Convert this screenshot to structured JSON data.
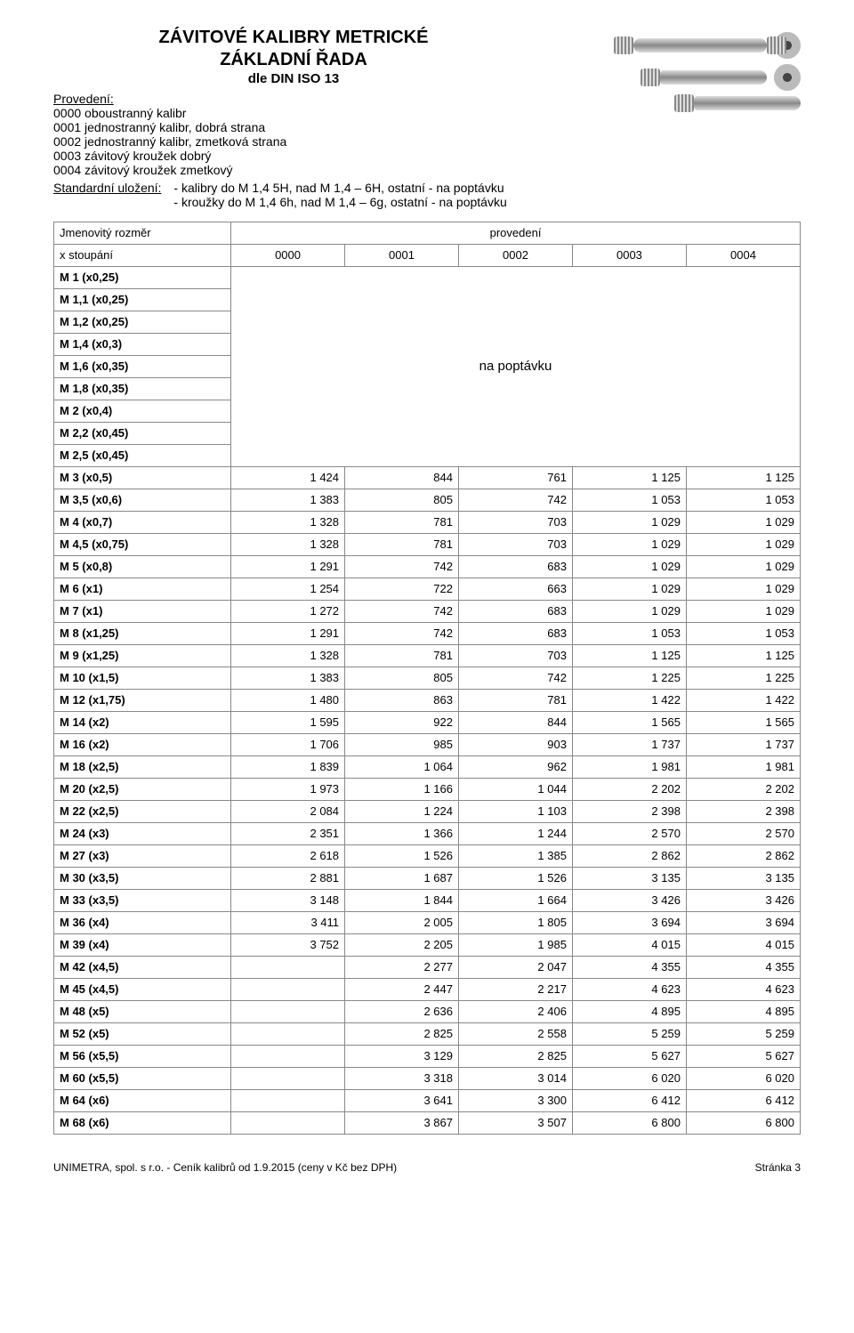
{
  "title": {
    "line1": "ZÁVITOVÉ KALIBRY METRICKÉ",
    "line2": "ZÁKLADNÍ ŘADA",
    "line3": "dle DIN ISO 13"
  },
  "provedeni": {
    "label": "Provedení:",
    "items": [
      "0000 oboustranný kalibr",
      "0001 jednostranný kalibr, dobrá strana",
      "0002 jednostranný kalibr, zmetková strana",
      "0003 závitový kroužek dobrý",
      "0004 závitový kroužek zmetkový"
    ]
  },
  "standard": {
    "label": "Standardní uložení:",
    "lines": [
      "- kalibry do M 1,4 5H, nad M 1,4 – 6H, ostatní - na poptávku",
      "- kroužky do M 1,4 6h, nad M 1,4 – 6g, ostatní - na poptávku"
    ]
  },
  "table": {
    "header1_left": "Jmenovitý rozměr",
    "header1_right": "provedení",
    "header2_left": "x stoupání",
    "codes": [
      "0000",
      "0001",
      "0002",
      "0003",
      "0004"
    ],
    "na_poptavku_label": "na poptávku",
    "rows_top": [
      "M 1 (x0,25)",
      "M 1,1 (x0,25)",
      "M 1,2 (x0,25)",
      "M 1,4 (x0,3)",
      "M 1,6 (x0,35)",
      "M 1,8 (x0,35)",
      "M 2 (x0,4)",
      "M 2,2 (x0,45)",
      "M 2,5 (x0,45)"
    ],
    "rows_data": [
      {
        "l": "M 3 (x0,5)",
        "v": [
          "1 424",
          "844",
          "761",
          "1 125",
          "1 125"
        ]
      },
      {
        "l": "M 3,5 (x0,6)",
        "v": [
          "1 383",
          "805",
          "742",
          "1 053",
          "1 053"
        ]
      },
      {
        "l": "M 4 (x0,7)",
        "v": [
          "1 328",
          "781",
          "703",
          "1 029",
          "1 029"
        ]
      },
      {
        "l": "M 4,5 (x0,75)",
        "v": [
          "1 328",
          "781",
          "703",
          "1 029",
          "1 029"
        ]
      },
      {
        "l": "M 5 (x0,8)",
        "v": [
          "1 291",
          "742",
          "683",
          "1 029",
          "1 029"
        ]
      },
      {
        "l": "M 6 (x1)",
        "v": [
          "1 254",
          "722",
          "663",
          "1 029",
          "1 029"
        ]
      },
      {
        "l": "M 7 (x1)",
        "v": [
          "1 272",
          "742",
          "683",
          "1 029",
          "1 029"
        ]
      },
      {
        "l": "M 8 (x1,25)",
        "v": [
          "1 291",
          "742",
          "683",
          "1 053",
          "1 053"
        ]
      },
      {
        "l": "M 9 (x1,25)",
        "v": [
          "1 328",
          "781",
          "703",
          "1 125",
          "1 125"
        ]
      },
      {
        "l": "M 10 (x1,5)",
        "v": [
          "1 383",
          "805",
          "742",
          "1 225",
          "1 225"
        ]
      },
      {
        "l": "M 12 (x1,75)",
        "v": [
          "1 480",
          "863",
          "781",
          "1 422",
          "1 422"
        ]
      },
      {
        "l": "M 14 (x2)",
        "v": [
          "1 595",
          "922",
          "844",
          "1 565",
          "1 565"
        ]
      },
      {
        "l": "M 16 (x2)",
        "v": [
          "1 706",
          "985",
          "903",
          "1 737",
          "1 737"
        ]
      },
      {
        "l": "M 18 (x2,5)",
        "v": [
          "1 839",
          "1 064",
          "962",
          "1 981",
          "1 981"
        ]
      },
      {
        "l": "M 20 (x2,5)",
        "v": [
          "1 973",
          "1 166",
          "1 044",
          "2 202",
          "2 202"
        ]
      },
      {
        "l": "M 22 (x2,5)",
        "v": [
          "2 084",
          "1 224",
          "1 103",
          "2 398",
          "2 398"
        ]
      },
      {
        "l": "M 24 (x3)",
        "v": [
          "2 351",
          "1 366",
          "1 244",
          "2 570",
          "2 570"
        ]
      },
      {
        "l": "M 27 (x3)",
        "v": [
          "2 618",
          "1 526",
          "1 385",
          "2 862",
          "2 862"
        ]
      },
      {
        "l": "M 30 (x3,5)",
        "v": [
          "2 881",
          "1 687",
          "1 526",
          "3 135",
          "3 135"
        ]
      },
      {
        "l": "M 33 (x3,5)",
        "v": [
          "3 148",
          "1 844",
          "1 664",
          "3 426",
          "3 426"
        ]
      },
      {
        "l": "M 36 (x4)",
        "v": [
          "3 411",
          "2 005",
          "1 805",
          "3 694",
          "3 694"
        ]
      },
      {
        "l": "M 39 (x4)",
        "v": [
          "3 752",
          "2 205",
          "1 985",
          "4 015",
          "4 015"
        ]
      },
      {
        "l": "M 42 (x4,5)",
        "v": [
          "",
          "2 277",
          "2 047",
          "4 355",
          "4 355"
        ]
      },
      {
        "l": "M 45 (x4,5)",
        "v": [
          "",
          "2 447",
          "2 217",
          "4 623",
          "4 623"
        ]
      },
      {
        "l": "M 48 (x5)",
        "v": [
          "",
          "2 636",
          "2 406",
          "4 895",
          "4 895"
        ]
      },
      {
        "l": "M 52 (x5)",
        "v": [
          "",
          "2 825",
          "2 558",
          "5 259",
          "5 259"
        ]
      },
      {
        "l": "M 56 (x5,5)",
        "v": [
          "",
          "3 129",
          "2 825",
          "5 627",
          "5 627"
        ]
      },
      {
        "l": "M 60 (x5,5)",
        "v": [
          "",
          "3 318",
          "3 014",
          "6 020",
          "6 020"
        ]
      },
      {
        "l": "M 64 (x6)",
        "v": [
          "",
          "3 641",
          "3 300",
          "6 412",
          "6 412"
        ]
      },
      {
        "l": "M 68 (x6)",
        "v": [
          "",
          "3 867",
          "3 507",
          "6 800",
          "6 800"
        ]
      }
    ]
  },
  "footer": {
    "left": "UNIMETRA, spol. s r.o. - Ceník kalibrů od 1.9.2015 (ceny v Kč bez DPH)",
    "right": "Stránka 3"
  }
}
